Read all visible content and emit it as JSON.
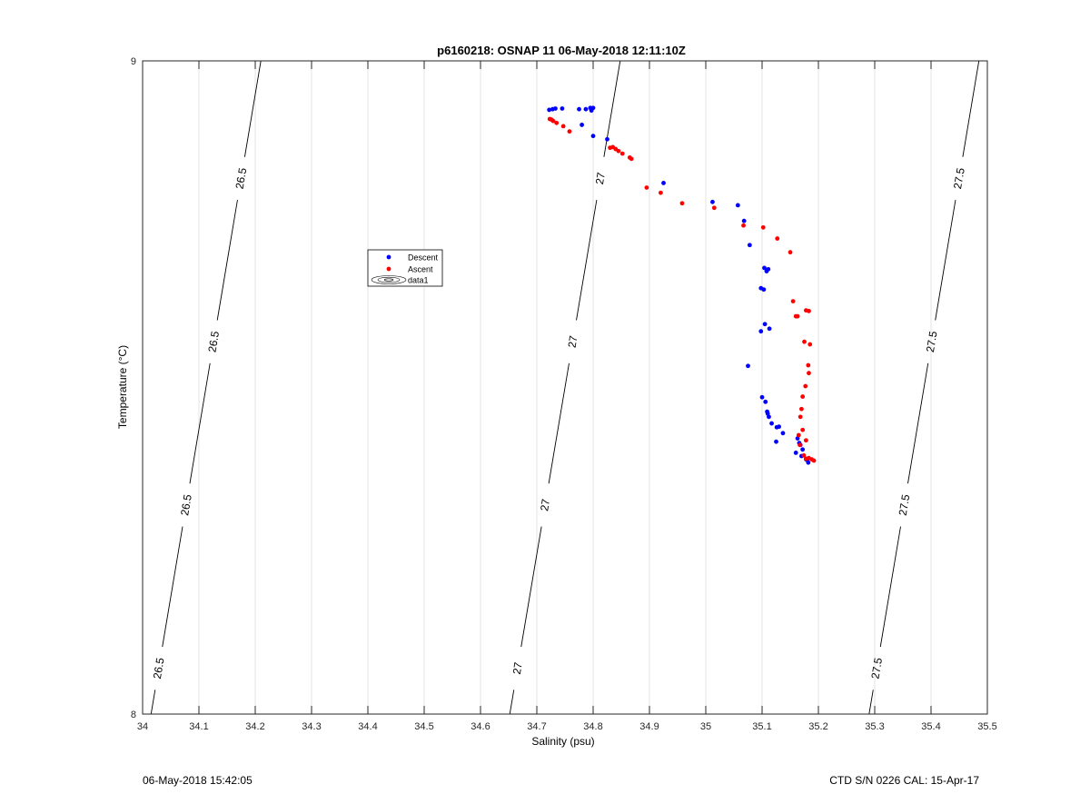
{
  "chart_data": {
    "type": "scatter",
    "title": "p6160218: OSNAP 11 06-May-2018 12:11:10Z",
    "xlabel": "Salinity (psu)",
    "ylabel": "Temperature (°C)",
    "xlim": [
      34,
      35.5
    ],
    "ylim": [
      8,
      9
    ],
    "x_ticks": [
      "34",
      "34.1",
      "34.2",
      "34.3",
      "34.4",
      "34.5",
      "34.6",
      "34.7",
      "34.8",
      "34.9",
      "35",
      "35.1",
      "35.2",
      "35.3",
      "35.4",
      "35.5"
    ],
    "y_ticks": [
      "8",
      "9"
    ],
    "grid": "vertical",
    "legend": {
      "placement": "upper-left-center",
      "entries": [
        "Descent",
        "Ascent",
        "data1"
      ]
    },
    "isopycnals": [
      {
        "label": "26.5",
        "x_at_ylow": 34.015,
        "x_at_yhigh": 34.21,
        "label_y": [
          8.07,
          8.32,
          8.57,
          8.82
        ]
      },
      {
        "label": "27",
        "x_at_ylow": 34.652,
        "x_at_yhigh": 34.848,
        "label_y": [
          8.07,
          8.32,
          8.57,
          8.82
        ]
      },
      {
        "label": "27.5",
        "x_at_ylow": 35.29,
        "x_at_yhigh": 35.485,
        "label_y": [
          8.07,
          8.32,
          8.57,
          8.82
        ]
      }
    ],
    "series": [
      {
        "name": "Descent",
        "color": "#0000ff",
        "x": [
          34.722,
          34.728,
          34.733,
          34.745,
          34.775,
          34.787,
          34.795,
          34.8,
          34.797,
          34.78,
          34.8,
          34.825,
          34.925,
          35.012,
          35.057,
          35.068,
          35.078,
          35.104,
          35.108,
          35.111,
          35.103,
          35.098,
          35.105,
          35.113,
          35.098,
          35.075,
          35.1,
          35.106,
          35.109,
          35.11,
          35.112,
          35.117,
          35.126,
          35.13,
          35.137,
          35.125,
          35.163,
          35.166,
          35.168,
          35.172,
          35.16,
          35.17,
          35.178,
          35.182,
          35.18
        ],
        "y": [
          8.925,
          8.926,
          8.927,
          8.927,
          8.926,
          8.926,
          8.928,
          8.928,
          8.924,
          8.902,
          8.885,
          8.88,
          8.813,
          8.784,
          8.779,
          8.755,
          8.718,
          8.683,
          8.678,
          8.681,
          8.65,
          8.652,
          8.597,
          8.59,
          8.586,
          8.533,
          8.485,
          8.478,
          8.463,
          8.46,
          8.455,
          8.445,
          8.439,
          8.44,
          8.43,
          8.417,
          8.422,
          8.415,
          8.412,
          8.405,
          8.4,
          8.395,
          8.39,
          8.385,
          8.389
        ]
      },
      {
        "name": "Ascent",
        "color": "#ff0000",
        "x": [
          34.723,
          34.726,
          34.729,
          34.735,
          34.747,
          34.758,
          34.83,
          34.835,
          34.84,
          34.845,
          34.852,
          34.865,
          34.868,
          34.895,
          34.92,
          34.958,
          35.015,
          35.067,
          35.102,
          35.127,
          35.15,
          35.155,
          35.16,
          35.163,
          35.178,
          35.183,
          35.175,
          35.185,
          35.182,
          35.183,
          35.177,
          35.172,
          35.17,
          35.168,
          35.165,
          35.172,
          35.178,
          35.167,
          35.178,
          35.183,
          35.188,
          35.192,
          35.174
        ],
        "y": [
          8.911,
          8.91,
          8.908,
          8.905,
          8.9,
          8.892,
          8.867,
          8.868,
          8.865,
          8.862,
          8.858,
          8.852,
          8.85,
          8.806,
          8.798,
          8.782,
          8.775,
          8.748,
          8.745,
          8.728,
          8.707,
          8.632,
          8.609,
          8.609,
          8.618,
          8.617,
          8.57,
          8.566,
          8.534,
          8.522,
          8.502,
          8.486,
          8.467,
          8.455,
          8.427,
          8.435,
          8.419,
          8.412,
          8.391,
          8.392,
          8.39,
          8.388,
          8.396
        ]
      }
    ]
  },
  "footer": {
    "left": "06-May-2018 15:42:05",
    "right": "CTD S/N 0226  CAL: 15-Apr-17"
  }
}
